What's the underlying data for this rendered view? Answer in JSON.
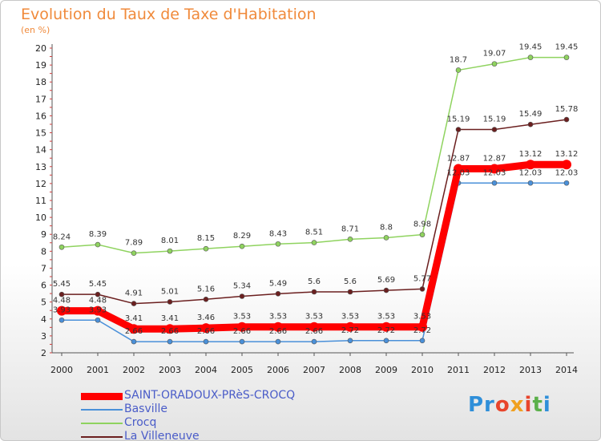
{
  "page": {
    "title": "Evolution du Taux de Taxe d'Habitation",
    "unit": "(en %)",
    "logo": "Proxiti"
  },
  "chart_data": {
    "type": "line",
    "title": "Evolution du Taux de Taxe d'Habitation",
    "ylabel": "(en %)",
    "xlabel": "",
    "x": [
      "2000",
      "2001",
      "2002",
      "2003",
      "2004",
      "2005",
      "2006",
      "2007",
      "2008",
      "2009",
      "2010",
      "2011",
      "2012",
      "2013",
      "2014"
    ],
    "ylim": [
      2,
      20
    ],
    "yticks": [
      2,
      3,
      4,
      5,
      6,
      7,
      8,
      9,
      10,
      11,
      12,
      13,
      14,
      15,
      16,
      17,
      18,
      19,
      20
    ],
    "grid": false,
    "legend": "bottom-left",
    "series": [
      {
        "name": "SAINT-ORADOUX-PRèS-CROCQ",
        "color": "#ff0000",
        "values": [
          4.48,
          4.48,
          3.41,
          3.41,
          3.46,
          3.53,
          3.53,
          3.53,
          3.53,
          3.53,
          3.53,
          12.87,
          12.87,
          13.12,
          13.12
        ],
        "labels": [
          "4.48",
          "4.48",
          "3.41",
          "3.41",
          "3.46",
          "3.53",
          "3.53",
          "3.53",
          "3.53",
          "3.53",
          "3.53",
          "12.87",
          "12.87",
          "13.12",
          "13.12"
        ]
      },
      {
        "name": "Basville",
        "color": "#4a90d9",
        "values": [
          3.93,
          3.93,
          2.66,
          2.66,
          2.66,
          2.66,
          2.66,
          2.66,
          2.72,
          2.72,
          2.72,
          12.03,
          12.03,
          12.03,
          12.03
        ],
        "labels": [
          "3.93",
          "3.93",
          "2.66",
          "2.66",
          "2.66",
          "2.66",
          "2.66",
          "2.66",
          "2.72",
          "2.72",
          "2.72",
          "12.03",
          "12.03",
          "12.03",
          "12.03"
        ]
      },
      {
        "name": "Crocq",
        "color": "#8fd35f",
        "values": [
          8.24,
          8.39,
          7.89,
          8.01,
          8.15,
          8.29,
          8.43,
          8.51,
          8.71,
          8.8,
          8.98,
          18.7,
          19.07,
          19.45,
          19.45
        ],
        "labels": [
          "8.24",
          "8.39",
          "7.89",
          "8.01",
          "8.15",
          "8.29",
          "8.43",
          "8.51",
          "8.71",
          "8.8",
          "8.98",
          "18.7",
          "19.07",
          "19.45",
          "19.45"
        ]
      },
      {
        "name": "La Villeneuve",
        "color": "#6b1f1f",
        "values": [
          5.45,
          5.45,
          4.91,
          5.01,
          5.16,
          5.34,
          5.49,
          5.6,
          5.6,
          5.69,
          5.77,
          15.19,
          15.19,
          15.49,
          15.78
        ],
        "labels": [
          "5.45",
          "5.45",
          "4.91",
          "5.01",
          "5.16",
          "5.34",
          "5.49",
          "5.6",
          "5.6",
          "5.69",
          "5.77",
          "15.19",
          "15.19",
          "15.49",
          "15.78"
        ]
      }
    ]
  }
}
